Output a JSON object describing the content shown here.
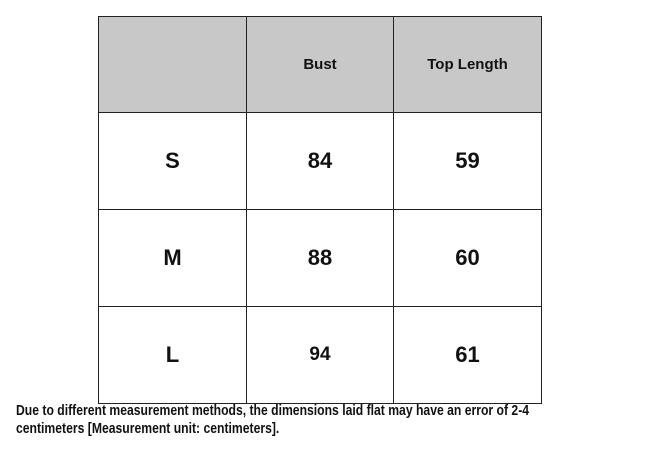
{
  "table": {
    "headers": [
      "",
      "Bust",
      "Top Length"
    ],
    "rows": [
      [
        "S",
        "84",
        "59"
      ],
      [
        "M",
        "88",
        "60"
      ],
      [
        "L",
        "94",
        "61"
      ]
    ],
    "header_bg": "#c8c8c8"
  },
  "caption": {
    "line1": "Due to different measurement methods, the dimensions laid flat may have an error of 2-4",
    "line2": "centimeters [Measurement unit: centimeters]."
  }
}
